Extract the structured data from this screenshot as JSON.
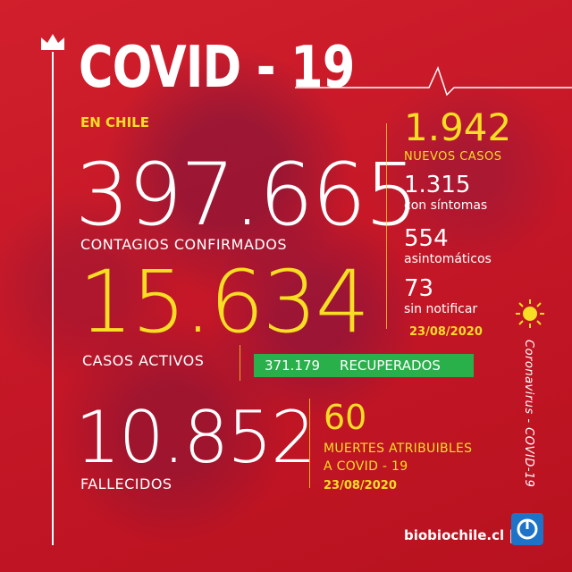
{
  "header": {
    "title": "COVID - 19",
    "subtitle": "EN CHILE"
  },
  "stats": {
    "contagios": {
      "value": "397.665",
      "label": "CONTAGIOS CONFIRMADOS"
    },
    "activos": {
      "value": "15.634",
      "label": "CASOS ACTIVOS"
    },
    "fallecidos": {
      "value": "10.852",
      "label": "FALLECIDOS"
    },
    "recuperados": {
      "value": "371.179",
      "label": "RECUPERADOS"
    }
  },
  "nuevos": {
    "value": "1.942",
    "label": "NUEVOS CASOS",
    "breakdown": [
      {
        "value": "1.315",
        "label": "con síntomas"
      },
      {
        "value": "554",
        "label": "asintomáticos"
      },
      {
        "value": "73",
        "label": "sin notificar"
      }
    ],
    "date": "23/08/2020"
  },
  "muertes": {
    "value": "60",
    "label_line1": "MUERTES ATRIBUIBLES",
    "label_line2": "A COVID - 19",
    "date": "23/08/2020"
  },
  "side_text": "Coronavirus - COVID-19",
  "brand": {
    "name": "biobiochile.cl |"
  },
  "colors": {
    "background": "#c8192a",
    "accent_yellow": "#f7dd24",
    "recuperados_green": "#29b04a",
    "logo_blue": "#1e73c8"
  },
  "icons": [
    "crown-icon",
    "heartbeat-line-icon",
    "sun-icon",
    "biobio-logo-icon"
  ]
}
